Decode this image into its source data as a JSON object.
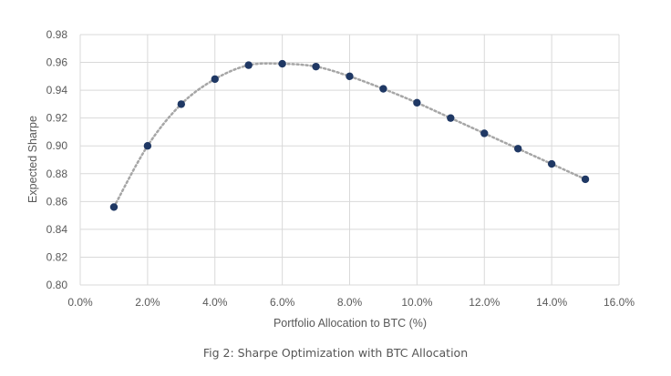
{
  "caption": "Fig 2: Sharpe Optimization with BTC Allocation",
  "chart_data": {
    "type": "scatter",
    "title": "",
    "xlabel": "Portfolio Allocation to BTC (%)",
    "ylabel": "Expected Sharpe",
    "xlim": [
      0.0,
      16.0
    ],
    "ylim": [
      0.8,
      0.98
    ],
    "x_ticks": [
      0,
      2,
      4,
      6,
      8,
      10,
      12,
      14,
      16
    ],
    "x_tick_labels": [
      "0.0%",
      "2.0%",
      "4.0%",
      "6.0%",
      "8.0%",
      "10.0%",
      "12.0%",
      "14.0%",
      "16.0%"
    ],
    "y_ticks": [
      0.8,
      0.82,
      0.84,
      0.86,
      0.88,
      0.9,
      0.92,
      0.94,
      0.96,
      0.98
    ],
    "y_tick_labels": [
      "0.80",
      "0.82",
      "0.84",
      "0.86",
      "0.88",
      "0.90",
      "0.92",
      "0.94",
      "0.96",
      "0.98"
    ],
    "grid": true,
    "trendline": "polynomial, dotted",
    "series": [
      {
        "name": "Expected Sharpe",
        "marker_color": "#1f3864",
        "trend_color": "#a6a6a6",
        "x": [
          1,
          2,
          3,
          4,
          5,
          6,
          7,
          8,
          9,
          10,
          11,
          12,
          13,
          14,
          15
        ],
        "y": [
          0.856,
          0.9,
          0.93,
          0.948,
          0.958,
          0.959,
          0.957,
          0.95,
          0.941,
          0.931,
          0.92,
          0.909,
          0.898,
          0.887,
          0.876
        ]
      }
    ]
  }
}
